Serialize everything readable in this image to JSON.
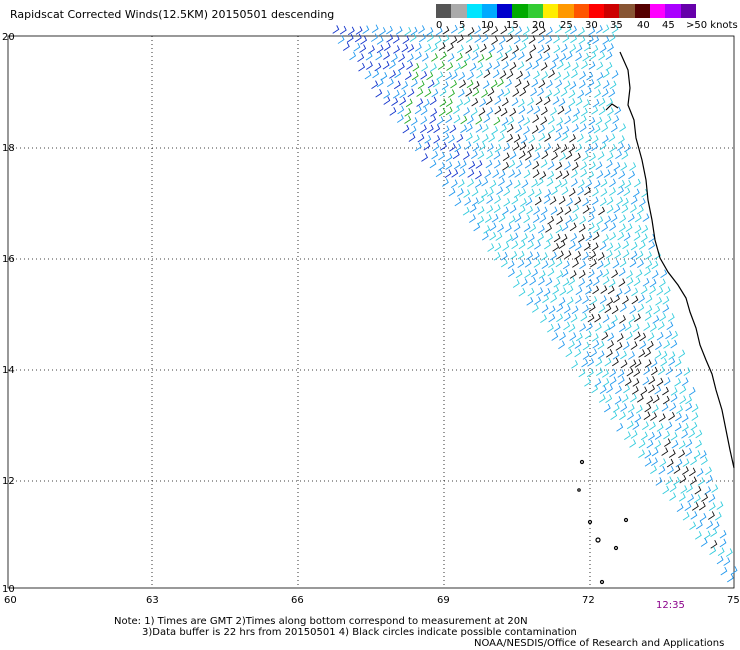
{
  "title": "Rapidscat Corrected Winds(12.5KM) 20150501 descending",
  "legend": {
    "colors": [
      "#555555",
      "#aaaaaa",
      "#00e5ff",
      "#00aaff",
      "#0000cc",
      "#00aa00",
      "#33cc33",
      "#ffee00",
      "#ff9900",
      "#ff5500",
      "#ff0000",
      "#cc0000",
      "#885533",
      "#550000",
      "#ff00ff",
      "#aa00ff",
      "#6600aa"
    ],
    "labels": [
      "0",
      "5",
      "10",
      "15",
      "20",
      "25",
      "30",
      "35",
      "40",
      "45",
      ">50 knots"
    ]
  },
  "axes": {
    "lat_labels": [
      "20",
      "18",
      "16",
      "14",
      "12",
      "10"
    ],
    "lon_labels": [
      "60",
      "63",
      "66",
      "69",
      "72",
      "75"
    ]
  },
  "time_label": "12:35",
  "notes": [
    "Note: 1) Times are GMT 2)Times along bottom correspond to measurement at 20N",
    "3)Data buffer is 22 hrs from 20150501 4) Black circles indicate possible contamination"
  ],
  "credit": "NOAA/NESDIS/Office of Research and Applications"
}
